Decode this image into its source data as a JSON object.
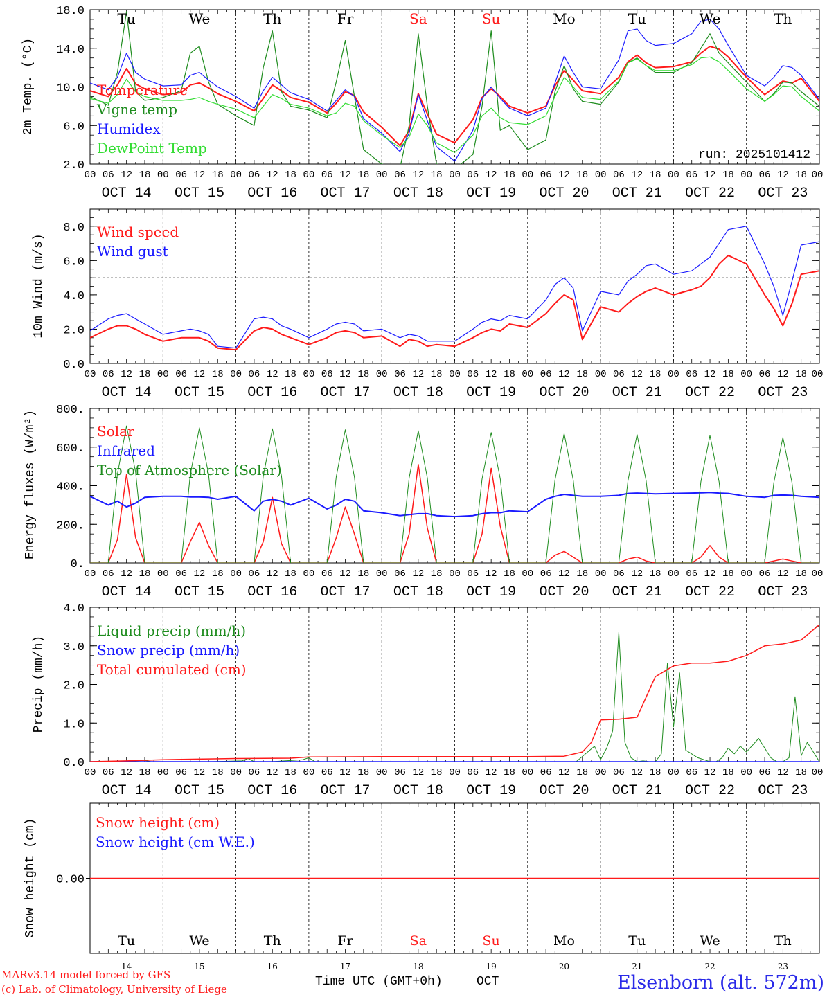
{
  "colors": {
    "red": "#ff1a1a",
    "blue": "#1a1aff",
    "green": "#1e8c1e",
    "lightgreen": "#33dd33",
    "black": "#000000",
    "title_blue": "#2a2ae8"
  },
  "days": [
    "Tu",
    "We",
    "Th",
    "Fr",
    "Sa",
    "Su",
    "Mo",
    "Tu",
    "We",
    "Th"
  ],
  "weekend_idx": [
    4,
    5
  ],
  "dates": [
    "OCT 14",
    "OCT 15",
    "OCT 16",
    "OCT 17",
    "OCT 18",
    "OCT 19",
    "OCT 20",
    "OCT 21",
    "OCT 22",
    "OCT 23"
  ],
  "day_numbers": [
    "14",
    "15",
    "16",
    "17",
    "18",
    "19",
    "20",
    "21",
    "22",
    "23"
  ],
  "hour_labels": [
    "00",
    "06",
    "12",
    "18"
  ],
  "final_hour": "00",
  "footer": {
    "model": "MARv3.14 model forced by GFS",
    "copyright": "(c) Lab. of Climatology, University of Liege",
    "xlabel": "Time UTC (GMT+0h)",
    "month": "OCT",
    "station": "Elsenborn (alt. 572m)"
  },
  "chart_data": [
    {
      "type": "line",
      "ylabel": "2m Temp. (°C)",
      "ylim": [
        2,
        18
      ],
      "yticks": [
        "2.0",
        "6.0",
        "10.0",
        "14.0",
        "18.0"
      ],
      "annotation": "run: 2025101412",
      "legend": [
        {
          "name": "Temperature",
          "color": "red"
        },
        {
          "name": "Vigne temp",
          "color": "green"
        },
        {
          "name": "Humidex",
          "color": "blue"
        },
        {
          "name": "DewPoint Temp",
          "color": "lightgreen"
        }
      ],
      "x_hours": [
        0,
        6,
        9,
        12,
        15,
        18,
        24,
        30,
        33,
        36,
        39,
        42,
        48,
        54,
        57,
        60,
        63,
        66,
        72,
        78,
        81,
        84,
        87,
        90,
        96,
        102,
        105,
        108,
        111,
        114,
        120,
        126,
        129,
        132,
        135,
        138,
        144,
        150,
        153,
        156,
        159,
        162,
        168,
        174,
        177,
        180,
        183,
        186,
        192,
        198,
        201,
        204,
        207,
        210,
        216,
        222,
        225,
        228,
        231,
        234,
        240
      ],
      "series": [
        {
          "name": "Temperature",
          "color": "red",
          "width": 2,
          "values": [
            9.6,
            9.0,
            10.2,
            11.9,
            10.3,
            9.8,
            9.2,
            9.4,
            10.2,
            10.4,
            9.9,
            9.3,
            8.5,
            7.5,
            8.8,
            10.2,
            9.6,
            8.9,
            8.4,
            7.3,
            8.3,
            9.5,
            9.1,
            7.4,
            5.8,
            3.9,
            5.5,
            9.3,
            7.2,
            5.1,
            4.2,
            6.6,
            8.9,
            9.8,
            9.0,
            8.0,
            7.3,
            8.0,
            10.1,
            11.7,
            10.7,
            9.6,
            9.3,
            11.0,
            12.6,
            13.3,
            12.5,
            12.0,
            12.1,
            12.6,
            13.5,
            14.2,
            13.9,
            13.1,
            11.0,
            9.2,
            9.9,
            10.6,
            10.4,
            10.9,
            8.5
          ]
        },
        {
          "name": "Vigne temp",
          "color": "green",
          "width": 1.2,
          "values": [
            9.0,
            8.1,
            11.5,
            17.8,
            9.5,
            8.6,
            8.9,
            9.6,
            13.5,
            14.2,
            10.5,
            8.2,
            7.0,
            6.0,
            12.0,
            15.8,
            9.5,
            8.0,
            7.6,
            6.8,
            10.5,
            14.8,
            9.0,
            3.5,
            2.0,
            1.6,
            6.0,
            15.5,
            8.0,
            2.0,
            1.5,
            3.0,
            8.0,
            15.8,
            5.5,
            6.0,
            3.5,
            4.5,
            9.5,
            12.2,
            9.8,
            8.5,
            8.2,
            10.5,
            12.5,
            13.0,
            12.2,
            11.5,
            11.5,
            12.5,
            14.0,
            15.5,
            13.5,
            12.5,
            10.5,
            8.5,
            9.3,
            10.5,
            10.4,
            9.5,
            8.0
          ]
        },
        {
          "name": "Humidex",
          "color": "blue",
          "width": 1.2,
          "values": [
            10.4,
            9.7,
            11.0,
            13.5,
            11.5,
            10.8,
            10.1,
            10.2,
            11.2,
            11.5,
            10.7,
            10.0,
            9.0,
            7.8,
            9.6,
            11.0,
            10.2,
            9.4,
            8.7,
            7.5,
            8.6,
            9.7,
            9.0,
            6.7,
            5.2,
            3.3,
            5.2,
            9.2,
            6.5,
            3.8,
            2.3,
            5.5,
            8.8,
            10.0,
            8.8,
            7.8,
            7.0,
            7.8,
            10.4,
            13.2,
            11.5,
            10.0,
            9.8,
            12.8,
            15.8,
            16.0,
            14.8,
            14.3,
            14.5,
            15.5,
            16.8,
            17.0,
            16.0,
            14.3,
            11.2,
            10.1,
            11.0,
            12.2,
            12.0,
            11.2,
            8.7
          ]
        },
        {
          "name": "DewPoint Temp",
          "color": "lightgreen",
          "width": 1.2,
          "values": [
            8.8,
            8.3,
            9.2,
            10.8,
            9.5,
            9.0,
            8.6,
            8.6,
            8.7,
            8.9,
            8.5,
            8.2,
            7.7,
            6.8,
            8.0,
            9.2,
            8.8,
            8.2,
            7.8,
            7.0,
            7.3,
            8.3,
            8.0,
            6.5,
            5.0,
            3.7,
            4.8,
            7.2,
            6.0,
            4.2,
            3.2,
            5.0,
            7.0,
            7.8,
            6.8,
            6.3,
            6.1,
            7.0,
            9.0,
            11.0,
            10.0,
            8.9,
            8.7,
            10.6,
            12.5,
            12.9,
            12.2,
            11.7,
            11.7,
            12.3,
            13.0,
            13.1,
            12.6,
            11.7,
            9.8,
            8.5,
            9.2,
            10.1,
            10.0,
            9.0,
            7.5
          ]
        }
      ]
    },
    {
      "type": "line",
      "ylabel": "10m Wind (m/s)",
      "ylim": [
        0,
        9
      ],
      "yticks": [
        "0.0",
        "2.0",
        "4.0",
        "6.0",
        "8.0"
      ],
      "reference_line": 5,
      "legend": [
        {
          "name": "Wind speed",
          "color": "red"
        },
        {
          "name": "Wind gust",
          "color": "blue"
        }
      ],
      "x_hours": [
        0,
        6,
        9,
        12,
        15,
        18,
        24,
        30,
        33,
        36,
        39,
        42,
        48,
        54,
        57,
        60,
        63,
        66,
        72,
        78,
        81,
        84,
        87,
        90,
        96,
        102,
        105,
        108,
        111,
        114,
        120,
        126,
        129,
        132,
        135,
        138,
        144,
        150,
        153,
        156,
        159,
        162,
        168,
        174,
        177,
        180,
        183,
        186,
        192,
        198,
        201,
        204,
        207,
        210,
        216,
        222,
        225,
        228,
        231,
        234,
        240
      ],
      "series": [
        {
          "name": "Wind speed",
          "color": "red",
          "width": 2,
          "values": [
            1.5,
            2.0,
            2.2,
            2.2,
            2.0,
            1.7,
            1.3,
            1.5,
            1.5,
            1.5,
            1.3,
            0.9,
            0.8,
            1.9,
            2.1,
            2.0,
            1.7,
            1.5,
            1.1,
            1.5,
            1.8,
            1.9,
            1.8,
            1.5,
            1.6,
            1.0,
            1.4,
            1.3,
            1.0,
            1.1,
            1.0,
            1.5,
            1.8,
            2.0,
            1.9,
            2.3,
            2.1,
            2.9,
            3.5,
            4.0,
            3.7,
            1.4,
            3.3,
            3.0,
            3.5,
            3.9,
            4.2,
            4.4,
            4.0,
            4.3,
            4.5,
            5.0,
            5.8,
            6.3,
            5.8,
            4.0,
            3.2,
            2.2,
            3.5,
            5.2,
            5.4
          ]
        },
        {
          "name": "Wind gust",
          "color": "blue",
          "width": 1.2,
          "values": [
            1.9,
            2.6,
            2.8,
            2.9,
            2.6,
            2.3,
            1.7,
            1.9,
            2.0,
            1.9,
            1.7,
            1.0,
            0.9,
            2.6,
            2.7,
            2.6,
            2.2,
            2.0,
            1.5,
            2.0,
            2.3,
            2.4,
            2.3,
            1.9,
            2.0,
            1.5,
            1.7,
            1.6,
            1.3,
            1.3,
            1.3,
            2.0,
            2.4,
            2.6,
            2.5,
            2.8,
            2.6,
            3.7,
            4.6,
            5.0,
            4.4,
            1.9,
            4.2,
            4.0,
            4.8,
            5.2,
            5.7,
            5.8,
            5.2,
            5.4,
            5.8,
            6.2,
            7.0,
            7.8,
            8.0,
            5.8,
            4.5,
            2.8,
            4.8,
            6.9,
            7.1
          ]
        }
      ]
    },
    {
      "type": "line",
      "ylabel": "Energy fluxes (W/m²)",
      "ylim": [
        0,
        800
      ],
      "yticks": [
        "0.",
        "200.",
        "400.",
        "600.",
        "800."
      ],
      "legend": [
        {
          "name": "Solar",
          "color": "red"
        },
        {
          "name": "Infrared",
          "color": "blue"
        },
        {
          "name": "Top of Atmosphere (Solar)",
          "color": "green"
        }
      ],
      "x_hours": [
        0,
        6,
        9,
        12,
        15,
        18,
        24,
        30,
        33,
        36,
        39,
        42,
        48,
        54,
        57,
        60,
        63,
        66,
        72,
        78,
        81,
        84,
        87,
        90,
        96,
        102,
        105,
        108,
        111,
        114,
        120,
        126,
        129,
        132,
        135,
        138,
        144,
        150,
        153,
        156,
        159,
        162,
        168,
        174,
        177,
        180,
        183,
        186,
        192,
        198,
        201,
        204,
        207,
        210,
        216,
        222,
        225,
        228,
        231,
        234,
        240
      ],
      "series": [
        {
          "name": "Solar",
          "color": "red",
          "width": 1.5,
          "values": [
            0,
            0,
            120,
            460,
            130,
            0,
            0,
            0,
            110,
            210,
            90,
            0,
            0,
            0,
            110,
            340,
            100,
            0,
            0,
            0,
            130,
            290,
            150,
            0,
            0,
            0,
            150,
            510,
            180,
            0,
            0,
            0,
            150,
            490,
            190,
            0,
            0,
            0,
            40,
            60,
            30,
            0,
            0,
            0,
            20,
            30,
            10,
            0,
            0,
            0,
            30,
            90,
            30,
            0,
            0,
            0,
            10,
            20,
            10,
            0,
            0
          ]
        },
        {
          "name": "Infrared",
          "color": "blue",
          "width": 2,
          "values": [
            345,
            300,
            320,
            290,
            310,
            340,
            345,
            345,
            342,
            342,
            340,
            330,
            345,
            270,
            320,
            330,
            320,
            300,
            335,
            280,
            300,
            330,
            320,
            270,
            260,
            245,
            250,
            255,
            255,
            245,
            240,
            245,
            255,
            260,
            260,
            270,
            265,
            330,
            345,
            355,
            350,
            345,
            345,
            350,
            360,
            362,
            360,
            358,
            360,
            362,
            363,
            365,
            362,
            360,
            345,
            340,
            350,
            352,
            350,
            345,
            340
          ]
        },
        {
          "name": "Top of Atmosphere (Solar)",
          "color": "green",
          "width": 1,
          "values": [
            0,
            0,
            460,
            710,
            470,
            0,
            0,
            0,
            460,
            700,
            460,
            0,
            0,
            0,
            450,
            695,
            450,
            0,
            0,
            0,
            445,
            690,
            445,
            0,
            0,
            0,
            440,
            685,
            440,
            0,
            0,
            0,
            435,
            675,
            435,
            0,
            0,
            0,
            430,
            670,
            430,
            0,
            0,
            0,
            425,
            665,
            425,
            0,
            0,
            0,
            420,
            660,
            420,
            0,
            0,
            0,
            415,
            650,
            415,
            0,
            0
          ]
        }
      ]
    },
    {
      "type": "line",
      "ylabel": "Precip (mm/h)",
      "ylim": [
        0,
        4
      ],
      "yticks": [
        "0.0",
        "1.0",
        "2.0",
        "3.0",
        "4.0"
      ],
      "legend": [
        {
          "name": "Liquid precip (mm/h)",
          "color": "green"
        },
        {
          "name": "Snow precip (mm/h)",
          "color": "blue"
        },
        {
          "name": "Total cumulated (cm)",
          "color": "red"
        }
      ],
      "series": [
        {
          "name": "Liquid precip (mm/h)",
          "color": "green",
          "width": 1,
          "x": [
            0,
            10,
            18,
            20,
            30,
            40,
            50,
            52,
            54,
            60,
            70,
            72,
            74,
            80,
            90,
            100,
            120,
            140,
            160,
            166,
            168,
            170,
            172,
            174,
            176,
            178,
            180,
            182,
            184,
            186,
            188,
            190,
            192,
            194,
            196,
            200,
            204,
            206,
            208,
            210,
            212,
            214,
            216,
            220,
            224,
            226,
            228,
            230,
            232,
            234,
            236,
            240
          ],
          "values": [
            0,
            0,
            0.03,
            0,
            0,
            0,
            0.02,
            0.08,
            0,
            0,
            0.05,
            0.1,
            0,
            0,
            0,
            0,
            0,
            0,
            0,
            0.4,
            0.05,
            0.35,
            0.8,
            3.35,
            0.5,
            0.1,
            0,
            0.02,
            0,
            0,
            0.2,
            2.55,
            0.9,
            2.3,
            0.3,
            0.1,
            0,
            0,
            0.1,
            0.35,
            0.2,
            0.4,
            0.25,
            0.6,
            0.1,
            0,
            0,
            0.1,
            1.68,
            0.15,
            0.5,
            0
          ]
        },
        {
          "name": "Snow precip (mm/h)",
          "color": "blue",
          "width": 1.5,
          "x": [
            0,
            240
          ],
          "values": [
            0,
            0
          ]
        },
        {
          "name": "Total cumulated (cm)",
          "color": "red",
          "width": 1.5,
          "x": [
            0,
            12,
            24,
            48,
            66,
            72,
            96,
            120,
            144,
            156,
            162,
            165,
            168,
            174,
            180,
            186,
            192,
            198,
            204,
            210,
            216,
            222,
            228,
            234,
            240
          ],
          "values": [
            0,
            0.02,
            0.05,
            0.08,
            0.09,
            0.12,
            0.13,
            0.13,
            0.13,
            0.14,
            0.25,
            0.5,
            1.08,
            1.1,
            1.15,
            2.2,
            2.48,
            2.55,
            2.55,
            2.6,
            2.75,
            3.0,
            3.05,
            3.15,
            3.55
          ]
        }
      ]
    },
    {
      "type": "line",
      "ylabel": "Snow height (cm)",
      "ylim": [
        -1,
        1
      ],
      "yticks": [
        "0.00"
      ],
      "legend": [
        {
          "name": "Snow height (cm)",
          "color": "red"
        },
        {
          "name": "Snow height (cm W.E.)",
          "color": "blue"
        }
      ],
      "series": [
        {
          "name": "Snow height (cm)",
          "color": "red",
          "width": 1.5,
          "x": [
            0,
            240
          ],
          "values": [
            0,
            0
          ]
        }
      ]
    }
  ]
}
